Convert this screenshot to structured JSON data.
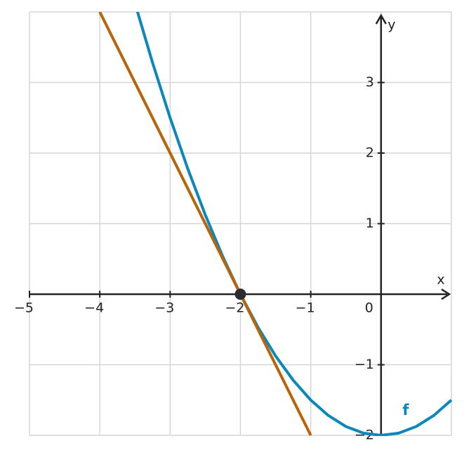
{
  "chart_data": {
    "type": "line",
    "x_label": "x",
    "y_label": "y",
    "xlim": [
      -5,
      1
    ],
    "ylim": [
      -2,
      4
    ],
    "xticks": [
      {
        "value": -5,
        "label": "−5"
      },
      {
        "value": -4,
        "label": "−4"
      },
      {
        "value": -3,
        "label": "−3"
      },
      {
        "value": -2,
        "label": "−2"
      },
      {
        "value": -1,
        "label": "−1"
      },
      {
        "value": 0,
        "label": "0"
      }
    ],
    "yticks": [
      {
        "value": -2,
        "label": "−2"
      },
      {
        "value": -1,
        "label": "−1"
      },
      1,
      2,
      3
    ],
    "grid": true,
    "series": [
      {
        "name": "f",
        "color": "#0a87bb",
        "x": [
          -3.5,
          -3.25,
          -3,
          -2.75,
          -2.5,
          -2.25,
          -2,
          -1.75,
          -1.5,
          -1.25,
          -1,
          -0.75,
          -0.5,
          -0.25,
          0,
          0.25,
          0.5,
          0.75,
          1
        ],
        "values": [
          4.125,
          3.28125,
          2.5,
          1.78125,
          1.125,
          0.53125,
          0,
          -0.46875,
          -0.875,
          -1.21875,
          -1.5,
          -1.71875,
          -1.875,
          -1.96875,
          -2,
          -1.96875,
          -1.875,
          -1.71875,
          -1.5
        ]
      },
      {
        "name": null,
        "color": "#b8650a",
        "x": [
          -4,
          -1
        ],
        "values": [
          4,
          -2
        ]
      }
    ],
    "point": {
      "x": -2,
      "y": 0,
      "color": "#2b2b33"
    }
  }
}
